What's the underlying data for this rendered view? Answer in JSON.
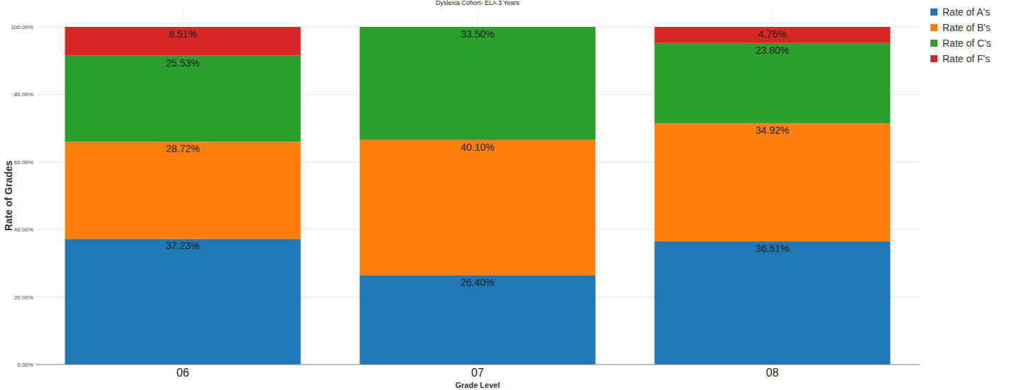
{
  "chart_data": {
    "type": "bar",
    "title": "Dyslexia Cohort- ELA 3 Years",
    "x_label": "Grade Level",
    "y_label": "Rate of Grades",
    "categories": [
      "06",
      "07",
      "08"
    ],
    "series": [
      {
        "name": "Rate of A's",
        "color": "#1f77b4",
        "values": [
          37.23,
          26.4,
          36.51
        ],
        "value_labels": [
          "37.23%",
          "26.40%",
          "36.51%"
        ]
      },
      {
        "name": "Rate of B's",
        "color": "#ff7f0e",
        "values": [
          28.72,
          40.1,
          34.92
        ],
        "value_labels": [
          "28.72%",
          "40.10%",
          "34.92%"
        ]
      },
      {
        "name": "Rate of C's",
        "color": "#2ca02c",
        "values": [
          25.53,
          33.5,
          23.8
        ],
        "value_labels": [
          "25.53%",
          "33.50%",
          "23.80%"
        ]
      },
      {
        "name": "Rate of F's",
        "color": "#d62728",
        "values": [
          8.51,
          null,
          4.76
        ],
        "value_labels": [
          "8.51%",
          null,
          "4.76%"
        ]
      }
    ],
    "ylim": [
      0,
      100
    ],
    "yticks": [
      {
        "value": 0,
        "label": "0.00%"
      },
      {
        "value": 20,
        "label": "20.00%"
      },
      {
        "value": 40,
        "label": "40.00%"
      },
      {
        "value": 60,
        "label": "60.00%"
      },
      {
        "value": 80,
        "label": "80.00%"
      },
      {
        "value": 100,
        "label": "100.00%"
      }
    ],
    "stacked": true,
    "data_labels": true,
    "grid": true,
    "legend": "top-right"
  }
}
